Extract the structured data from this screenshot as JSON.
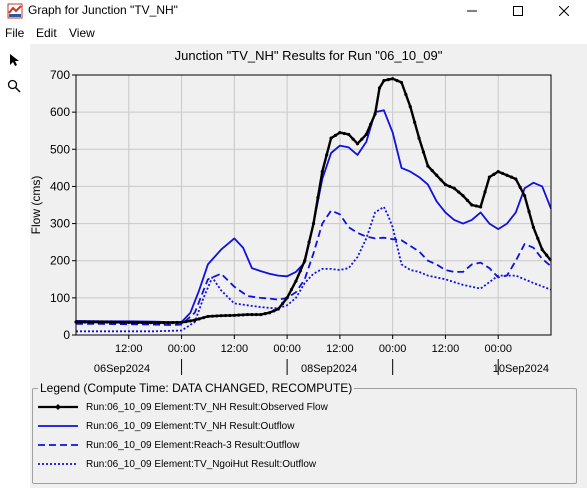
{
  "window": {
    "title": "Graph for Junction \"TV_NH\""
  },
  "menu": {
    "items": [
      "File",
      "Edit",
      "View"
    ]
  },
  "toolbar": {
    "tools": [
      {
        "name": "pointer-tool",
        "icon": "arrow-pointer-icon"
      },
      {
        "name": "zoom-tool",
        "icon": "magnifier-icon"
      }
    ]
  },
  "colors": {
    "observed": "#000000",
    "series": "#1010e0",
    "plot_bg": "#f0f0f0",
    "grid": "#c8c8c8"
  },
  "chart_data": {
    "type": "line",
    "title": "Junction \"TV_NH\" Results for Run \"06_10_09\"",
    "ylabel": "Flow (cms)",
    "xlabel": "",
    "ylim": [
      0,
      700
    ],
    "xlim_hours": [
      0,
      108
    ],
    "yticks": [
      "0",
      "100",
      "200",
      "300",
      "400",
      "500",
      "600",
      "700"
    ],
    "xticks": [
      {
        "h": 12,
        "label": "12:00"
      },
      {
        "h": 24,
        "label": "00:00"
      },
      {
        "h": 36,
        "label": "12:00"
      },
      {
        "h": 48,
        "label": "00:00"
      },
      {
        "h": 60,
        "label": "12:00"
      },
      {
        "h": 72,
        "label": "00:00"
      },
      {
        "h": 84,
        "label": "12:00"
      },
      {
        "h": 96,
        "label": "00:00"
      }
    ],
    "date_labels": [
      {
        "h": 0,
        "label": "06Sep2024"
      },
      {
        "h": 48,
        "label": "08Sep2024"
      },
      {
        "h": 96,
        "label": "10Sep2024"
      }
    ],
    "day_markers_h": [
      24,
      48,
      72,
      96
    ],
    "grid": true,
    "legend_title": "Legend (Compute Time: DATA CHANGED, RECOMPUTE)",
    "series": [
      {
        "name": "Run:06_10_09 Element:TV_NH Result:Observed Flow",
        "style": "solid-markers",
        "x": [
          0,
          6,
          12,
          18,
          21,
          24,
          27,
          30,
          33,
          36,
          39,
          42,
          44,
          46,
          48,
          50,
          52,
          54,
          56,
          58,
          60,
          62,
          64,
          66,
          68,
          69,
          70,
          72,
          74,
          76,
          78,
          80,
          82,
          84,
          86,
          88,
          90,
          92,
          94,
          96,
          98,
          100,
          102,
          104,
          106,
          108
        ],
        "y": [
          35,
          35,
          34,
          33,
          33,
          34,
          40,
          50,
          52,
          53,
          55,
          55,
          60,
          70,
          100,
          145,
          200,
          300,
          440,
          530,
          545,
          540,
          515,
          540,
          595,
          665,
          685,
          690,
          680,
          615,
          530,
          455,
          430,
          405,
          395,
          375,
          350,
          345,
          425,
          440,
          430,
          420,
          375,
          290,
          230,
          200
        ]
      },
      {
        "name": "Run:06_10_09 Element:TV_NH Result:Outflow",
        "style": "solid",
        "x": [
          0,
          6,
          12,
          18,
          21,
          24,
          26,
          28,
          30,
          33,
          36,
          38,
          40,
          42,
          44,
          46,
          48,
          50,
          52,
          54,
          56,
          58,
          60,
          62,
          64,
          66,
          68,
          70,
          72,
          74,
          76,
          78,
          80,
          82,
          84,
          86,
          88,
          90,
          92,
          94,
          96,
          98,
          100,
          102,
          104,
          106,
          108
        ],
        "y": [
          38,
          37,
          37,
          36,
          35,
          35,
          60,
          120,
          190,
          230,
          260,
          235,
          180,
          172,
          165,
          160,
          158,
          170,
          195,
          300,
          420,
          490,
          510,
          505,
          485,
          520,
          600,
          605,
          545,
          450,
          440,
          425,
          405,
          360,
          330,
          310,
          300,
          310,
          330,
          300,
          285,
          300,
          330,
          395,
          410,
          400,
          340
        ]
      },
      {
        "name": "Run:06_10_09 Element:Reach-3 Result:Outflow",
        "style": "dashed",
        "x": [
          0,
          6,
          12,
          18,
          21,
          24,
          27,
          30,
          33,
          36,
          39,
          42,
          44,
          46,
          48,
          50,
          52,
          54,
          56,
          58,
          60,
          62,
          64,
          66,
          68,
          70,
          72,
          74,
          76,
          78,
          80,
          82,
          84,
          86,
          88,
          90,
          92,
          94,
          96,
          98,
          100,
          102,
          104,
          106,
          108
        ],
        "y": [
          30,
          30,
          29,
          28,
          27,
          28,
          60,
          150,
          165,
          130,
          105,
          100,
          98,
          95,
          100,
          115,
          150,
          220,
          300,
          335,
          325,
          290,
          275,
          265,
          260,
          262,
          258,
          255,
          240,
          225,
          200,
          190,
          175,
          170,
          170,
          190,
          195,
          180,
          155,
          160,
          200,
          245,
          235,
          205,
          185
        ]
      },
      {
        "name": "Run:06_10_09 Element:TV_NgoiHut Result:Outflow",
        "style": "dotted",
        "x": [
          0,
          6,
          12,
          18,
          21,
          24,
          27,
          29,
          31,
          33,
          36,
          39,
          42,
          44,
          46,
          48,
          50,
          52,
          54,
          56,
          58,
          60,
          62,
          64,
          66,
          68,
          70,
          71,
          72,
          74,
          76,
          78,
          80,
          84,
          88,
          92,
          96,
          100,
          104,
          108
        ],
        "y": [
          10,
          10,
          10,
          10,
          11,
          12,
          35,
          100,
          155,
          120,
          85,
          80,
          75,
          73,
          72,
          80,
          100,
          140,
          165,
          178,
          178,
          175,
          180,
          210,
          260,
          330,
          345,
          320,
          290,
          190,
          175,
          170,
          160,
          150,
          135,
          125,
          160,
          160,
          140,
          122
        ]
      }
    ]
  }
}
